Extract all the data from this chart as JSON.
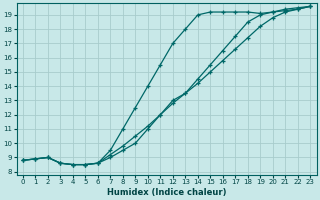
{
  "xlabel": "Humidex (Indice chaleur)",
  "bg_color": "#c8e8e8",
  "grid_color": "#a8cccc",
  "line_color": "#006868",
  "xlim": [
    -0.5,
    23.5
  ],
  "ylim": [
    7.8,
    19.8
  ],
  "xticks": [
    0,
    1,
    2,
    3,
    4,
    5,
    6,
    7,
    8,
    9,
    10,
    11,
    12,
    13,
    14,
    15,
    16,
    17,
    18,
    19,
    20,
    21,
    22,
    23
  ],
  "yticks": [
    8,
    9,
    10,
    11,
    12,
    13,
    14,
    15,
    16,
    17,
    18,
    19
  ],
  "line1_x": [
    0,
    1,
    2,
    3,
    4,
    5,
    6,
    7,
    8,
    9,
    10,
    11,
    12,
    13,
    14,
    15,
    16,
    17,
    18,
    19,
    20,
    21,
    22,
    23
  ],
  "line1_y": [
    8.8,
    8.9,
    9.0,
    8.6,
    8.5,
    8.5,
    8.6,
    9.2,
    9.8,
    10.5,
    11.2,
    12.0,
    12.8,
    13.5,
    14.2,
    15.0,
    15.8,
    16.6,
    17.4,
    18.2,
    18.8,
    19.2,
    19.4,
    19.6
  ],
  "line2_x": [
    0,
    1,
    2,
    3,
    4,
    5,
    6,
    7,
    8,
    9,
    10,
    11,
    12,
    13,
    14,
    15,
    16,
    17,
    18,
    19,
    20,
    21,
    22,
    23
  ],
  "line2_y": [
    8.8,
    8.9,
    9.0,
    8.6,
    8.5,
    8.5,
    8.6,
    9.5,
    11.0,
    12.5,
    14.0,
    15.5,
    17.0,
    18.0,
    19.0,
    19.2,
    19.2,
    19.2,
    19.2,
    19.1,
    19.2,
    19.3,
    19.4,
    19.6
  ],
  "line3_x": [
    0,
    1,
    2,
    3,
    4,
    5,
    6,
    7,
    8,
    9,
    10,
    11,
    12,
    13,
    14,
    15,
    16,
    17,
    18,
    19,
    20,
    21,
    22,
    23
  ],
  "line3_y": [
    8.8,
    8.9,
    9.0,
    8.6,
    8.5,
    8.5,
    8.6,
    9.0,
    9.5,
    10.0,
    11.0,
    12.0,
    13.0,
    13.5,
    14.5,
    15.5,
    16.5,
    17.5,
    18.5,
    19.0,
    19.2,
    19.4,
    19.5,
    19.6
  ]
}
